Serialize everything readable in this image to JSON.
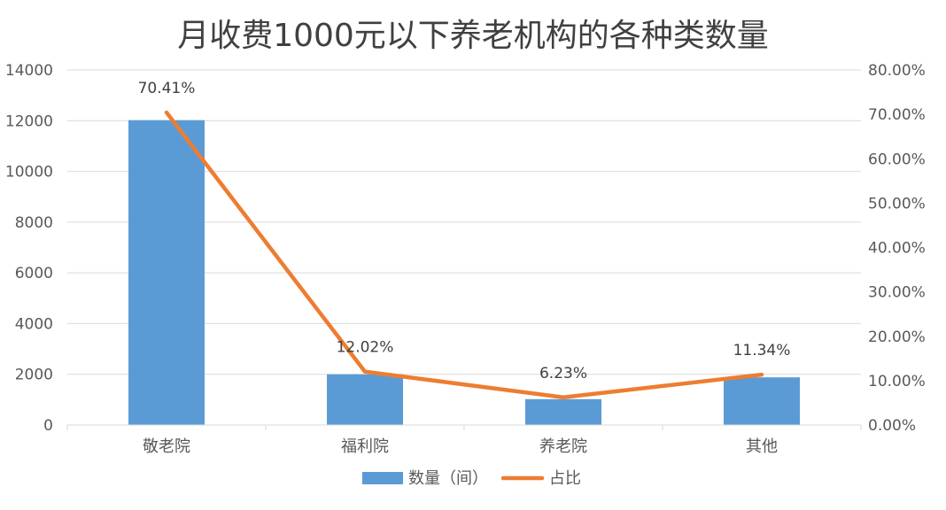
{
  "chart_data": {
    "type": "bar",
    "title": "月收费1000元以下养老机构的各种类数量",
    "categories": [
      "敬老院",
      "福利院",
      "养老院",
      "其他"
    ],
    "series": [
      {
        "name": "数量（间）",
        "type": "bar",
        "axis": "left",
        "color": "#5B9BD5",
        "values": [
          12020,
          2000,
          1020,
          1880
        ]
      },
      {
        "name": "占比",
        "type": "line",
        "axis": "right",
        "color": "#ED7D31",
        "values": [
          70.41,
          12.02,
          6.23,
          11.34
        ],
        "labels": [
          "70.41%",
          "12.02%",
          "6.23%",
          "11.34%"
        ]
      }
    ],
    "y_left": {
      "min": 0,
      "max": 14000,
      "ticks": [
        "0",
        "2000",
        "4000",
        "6000",
        "8000",
        "10000",
        "12000",
        "14000"
      ]
    },
    "y_right": {
      "min": 0,
      "max": 80,
      "ticks": [
        "0.00%",
        "10.00%",
        "20.00%",
        "30.00%",
        "40.00%",
        "50.00%",
        "60.00%",
        "70.00%",
        "80.00%"
      ]
    },
    "grid": true,
    "legend": "bottom"
  }
}
